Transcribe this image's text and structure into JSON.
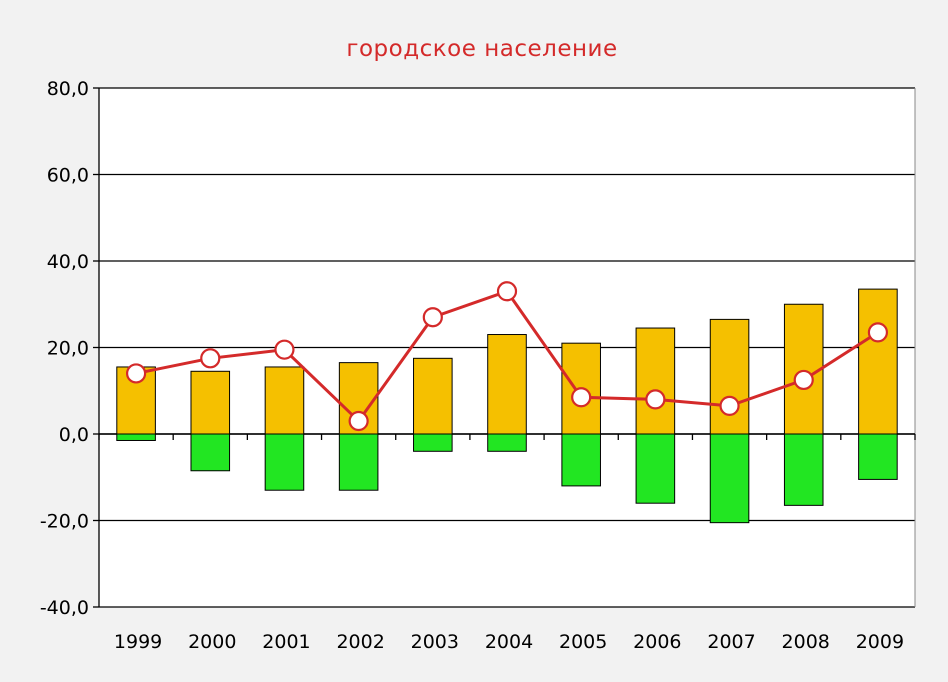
{
  "chart_data": {
    "type": "bar",
    "title": "городское население",
    "categories": [
      "1999",
      "2000",
      "2001",
      "2002",
      "2003",
      "2004",
      "2005",
      "2006",
      "2007",
      "2008",
      "2009"
    ],
    "series": [
      {
        "kind": "bar",
        "color": "#f5c000",
        "values": [
          15.5,
          14.5,
          15.5,
          16.5,
          17.5,
          23.0,
          21.0,
          24.5,
          26.5,
          30.0,
          33.5
        ]
      },
      {
        "kind": "bar",
        "color": "#22e622",
        "values": [
          -1.5,
          -8.5,
          -13.0,
          -13.0,
          -4.0,
          -4.0,
          -12.0,
          -16.0,
          -20.5,
          -16.5,
          -10.5
        ]
      },
      {
        "kind": "line",
        "color": "#d42a2a",
        "marker": "circle",
        "values": [
          14.0,
          17.5,
          19.5,
          3.0,
          27.0,
          33.0,
          8.5,
          8.0,
          6.5,
          12.5,
          23.5
        ]
      }
    ],
    "yticks": [
      "80,0",
      "60,0",
      "40,0",
      "20,0",
      "0,0",
      "-20,0",
      "-40,0"
    ],
    "ylim": [
      -40,
      80
    ],
    "grid": true,
    "title_color": "#d42a2a"
  }
}
